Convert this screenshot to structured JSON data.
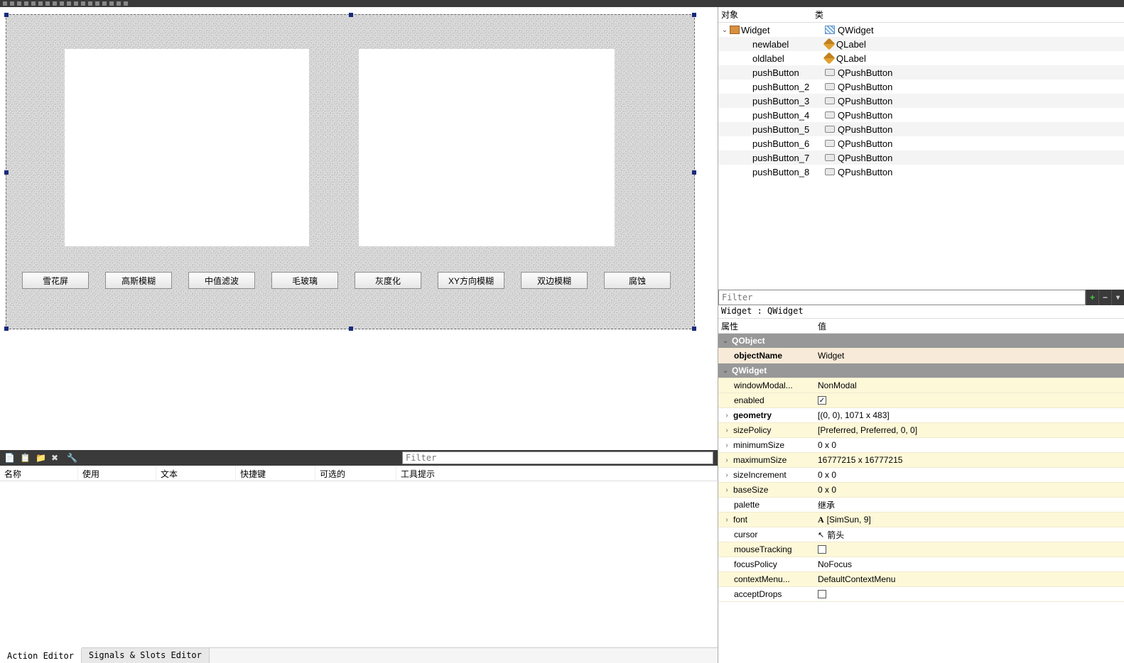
{
  "toolbar_icon_count": 18,
  "canvas": {
    "buttons": [
      "雪花屏",
      "高斯模糊",
      "中值滤波",
      "毛玻璃",
      "灰度化",
      "XY方向模糊",
      "双边模糊",
      "腐蚀"
    ]
  },
  "object_tree": {
    "header": {
      "col_object": "对象",
      "col_class": "类"
    },
    "rows": [
      {
        "indent": 0,
        "name": "Widget",
        "cls": "QWidget",
        "icon_obj": "widget",
        "icon_cls": "hatch",
        "expanded": true
      },
      {
        "indent": 1,
        "name": "newlabel",
        "cls": "QLabel",
        "icon_cls": "tag"
      },
      {
        "indent": 1,
        "name": "oldlabel",
        "cls": "QLabel",
        "icon_cls": "tag"
      },
      {
        "indent": 1,
        "name": "pushButton",
        "cls": "QPushButton",
        "icon_cls": "btn"
      },
      {
        "indent": 1,
        "name": "pushButton_2",
        "cls": "QPushButton",
        "icon_cls": "btn"
      },
      {
        "indent": 1,
        "name": "pushButton_3",
        "cls": "QPushButton",
        "icon_cls": "btn"
      },
      {
        "indent": 1,
        "name": "pushButton_4",
        "cls": "QPushButton",
        "icon_cls": "btn"
      },
      {
        "indent": 1,
        "name": "pushButton_5",
        "cls": "QPushButton",
        "icon_cls": "btn"
      },
      {
        "indent": 1,
        "name": "pushButton_6",
        "cls": "QPushButton",
        "icon_cls": "btn"
      },
      {
        "indent": 1,
        "name": "pushButton_7",
        "cls": "QPushButton",
        "icon_cls": "btn"
      },
      {
        "indent": 1,
        "name": "pushButton_8",
        "cls": "QPushButton",
        "icon_cls": "btn"
      }
    ]
  },
  "property_panel": {
    "filter_placeholder": "Filter",
    "context": "Widget : QWidget",
    "header": {
      "col_prop": "属性",
      "col_value": "值"
    },
    "groups": [
      {
        "type": "group",
        "label": "QObject"
      },
      {
        "type": "prop",
        "key": "objectName",
        "value": "Widget",
        "bold": true,
        "bg": "selname"
      },
      {
        "type": "group",
        "label": "QWidget"
      },
      {
        "type": "prop",
        "key": "windowModal...",
        "value": "NonModal",
        "bg": "yellowish"
      },
      {
        "type": "prop",
        "key": "enabled",
        "value": "",
        "checkbox": true,
        "checked": true,
        "bg": "yellowish"
      },
      {
        "type": "prop",
        "key": "geometry",
        "value": "[(0, 0), 1071 x 483]",
        "expandable": true,
        "bold": true
      },
      {
        "type": "prop",
        "key": "sizePolicy",
        "value": "[Preferred, Preferred, 0, 0]",
        "expandable": true,
        "bg": "yellowish"
      },
      {
        "type": "prop",
        "key": "minimumSize",
        "value": "0 x 0",
        "expandable": true
      },
      {
        "type": "prop",
        "key": "maximumSize",
        "value": "16777215 x 16777215",
        "expandable": true,
        "bg": "yellowish"
      },
      {
        "type": "prop",
        "key": "sizeIncrement",
        "value": "0 x 0",
        "expandable": true
      },
      {
        "type": "prop",
        "key": "baseSize",
        "value": "0 x 0",
        "expandable": true,
        "bg": "yellowish"
      },
      {
        "type": "prop",
        "key": "palette",
        "value": "继承"
      },
      {
        "type": "prop",
        "key": "font",
        "value": "[SimSun, 9]",
        "expandable": true,
        "bg": "yellowish",
        "value_icon": "font"
      },
      {
        "type": "prop",
        "key": "cursor",
        "value": "箭头",
        "value_icon": "cursor"
      },
      {
        "type": "prop",
        "key": "mouseTracking",
        "value": "",
        "checkbox": true,
        "checked": false,
        "bg": "yellowish"
      },
      {
        "type": "prop",
        "key": "focusPolicy",
        "value": "NoFocus"
      },
      {
        "type": "prop",
        "key": "contextMenu...",
        "value": "DefaultContextMenu",
        "bg": "yellowish"
      },
      {
        "type": "prop",
        "key": "acceptDrops",
        "value": "",
        "checkbox": true,
        "checked": false
      }
    ]
  },
  "action_editor": {
    "filter_placeholder": "Filter",
    "columns": [
      "名称",
      "使用",
      "文本",
      "快捷键",
      "可选的",
      "工具提示"
    ],
    "tabs": {
      "active": "Action Editor",
      "inactive": "Signals & Slots Editor"
    }
  }
}
